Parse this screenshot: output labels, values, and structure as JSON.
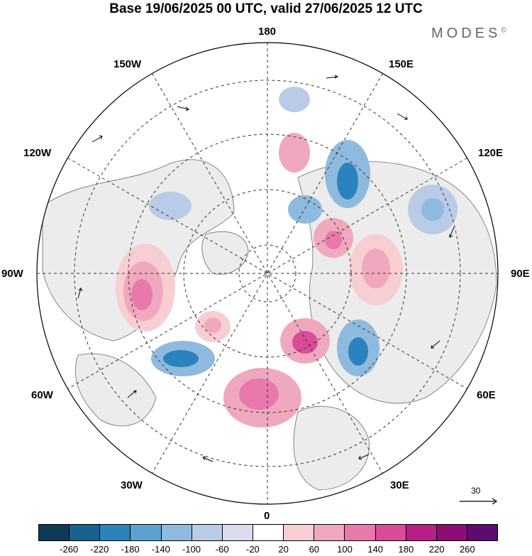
{
  "title": "Base 19/06/2025 00 UTC, valid 27/06/2025 12 UTC",
  "logo": {
    "text": "MODES",
    "mark": "©"
  },
  "longitude_labels": {
    "top": "180",
    "top_left": "150W",
    "top_right": "150E",
    "upper_left": "120W",
    "upper_right": "120E",
    "left": "90W",
    "right": "90E",
    "lower_left": "60W",
    "lower_right": "60E",
    "bottom_left": "30W",
    "bottom_right": "30E",
    "bottom": "0"
  },
  "reference_vector": {
    "label": "30"
  },
  "colorbar": {
    "colors": [
      "#0d3b59",
      "#17628e",
      "#2a83bd",
      "#5aa2d0",
      "#8fbadf",
      "#b9cbe6",
      "#dcdcee",
      "#ffffff",
      "#f7cfd3",
      "#f0a8be",
      "#e879aa",
      "#d94c98",
      "#b81e86",
      "#8c0d7a",
      "#5c0b6e"
    ],
    "ticks": [
      "-260",
      "-220",
      "-180",
      "-140",
      "-100",
      "-60",
      "-20",
      "20",
      "60",
      "100",
      "140",
      "180",
      "220",
      "260"
    ]
  }
}
